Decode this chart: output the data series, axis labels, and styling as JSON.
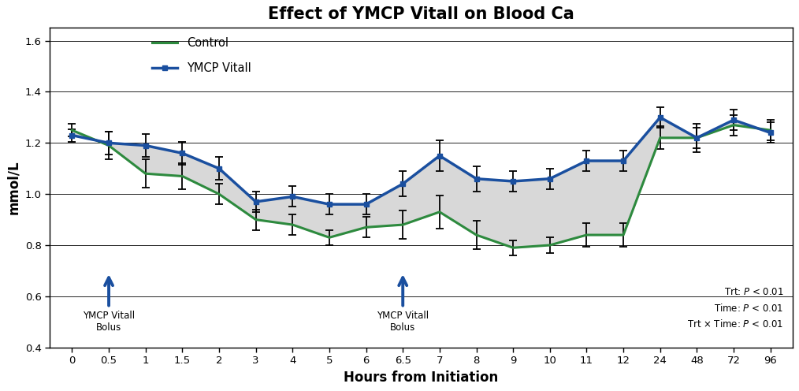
{
  "title": "Effect of YMCP Vitall on Blood Ca",
  "xlabel": "Hours from Initiation",
  "ylabel": "mmol/L",
  "x_ticks": [
    0,
    0.5,
    1,
    1.5,
    2,
    3,
    4,
    5,
    6,
    6.5,
    7,
    8,
    9,
    10,
    11,
    12,
    24,
    48,
    72,
    96
  ],
  "control_y": [
    1.25,
    1.19,
    1.08,
    1.07,
    1.0,
    0.9,
    0.88,
    0.83,
    0.87,
    0.88,
    0.93,
    0.84,
    0.79,
    0.8,
    0.84,
    0.84,
    1.22,
    1.22,
    1.27,
    1.25
  ],
  "control_err": [
    0.025,
    0.055,
    0.055,
    0.05,
    0.04,
    0.04,
    0.04,
    0.03,
    0.04,
    0.055,
    0.065,
    0.055,
    0.03,
    0.03,
    0.045,
    0.045,
    0.045,
    0.055,
    0.04,
    0.04
  ],
  "ymcp_y": [
    1.23,
    1.2,
    1.19,
    1.16,
    1.1,
    0.97,
    0.99,
    0.96,
    0.96,
    1.04,
    1.15,
    1.06,
    1.05,
    1.06,
    1.13,
    1.13,
    1.3,
    1.22,
    1.29,
    1.24
  ],
  "ymcp_err": [
    0.025,
    0.045,
    0.045,
    0.045,
    0.045,
    0.04,
    0.04,
    0.04,
    0.04,
    0.05,
    0.06,
    0.05,
    0.04,
    0.04,
    0.04,
    0.04,
    0.04,
    0.04,
    0.04,
    0.04
  ],
  "control_color": "#2d8a3e",
  "ymcp_color": "#1a4f9f",
  "fill_color": "#d8d8d8",
  "ylim": [
    0.4,
    1.65
  ],
  "yticks": [
    0.4,
    0.6,
    0.8,
    1.0,
    1.2,
    1.4,
    1.6
  ],
  "arrow1_xi": 1,
  "arrow2_xi": 9,
  "arrow_label": "YMCP Vitall\nBolus",
  "stats_text": "Trt: $P$ < 0.01\nTime: $P$ < 0.01\nTrt × Time: $P$ < 0.01",
  "legend_control": "Control",
  "legend_ymcp": "YMCP Vitall",
  "title_fontsize": 15,
  "label_fontsize": 12,
  "tick_fontsize": 9.5
}
